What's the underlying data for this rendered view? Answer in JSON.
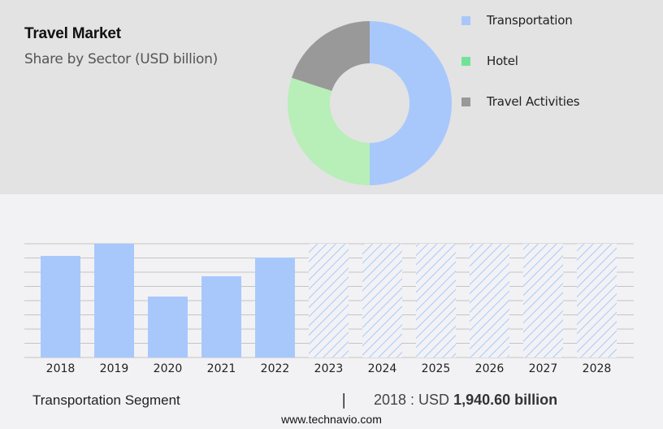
{
  "header": {
    "title": "Travel Market",
    "subtitle": "Share by Sector (USD billion)"
  },
  "legend": [
    {
      "label": "Transportation",
      "color": "#a8c8fc"
    },
    {
      "label": "Hotel",
      "color": "#72e396"
    },
    {
      "label": "Travel Activities",
      "color": "#999999"
    }
  ],
  "footer": {
    "segment": "Transportation Segment",
    "separator": "|",
    "year_prefix": "2018 : USD",
    "value": "1,940.60 billion",
    "site": "www.technavio.com"
  },
  "chart_data": [
    {
      "type": "pie",
      "title": "Travel Market",
      "subtitle": "Share by Sector (USD billion)",
      "donut": true,
      "categories": [
        "Transportation",
        "Hotel",
        "Travel Activities"
      ],
      "values": [
        50,
        30,
        20
      ],
      "colors": [
        "#a8c8fc",
        "#b8eeb8",
        "#999999"
      ],
      "legend_position": "right"
    },
    {
      "type": "bar",
      "title": "Transportation Segment",
      "categories": [
        "2018",
        "2019",
        "2020",
        "2021",
        "2022",
        "2023",
        "2024",
        "2025",
        "2026",
        "2027",
        "2028"
      ],
      "values": [
        1940.6,
        2173,
        1164,
        1552,
        1910,
        null,
        null,
        null,
        null,
        null,
        null
      ],
      "forecast": [
        false,
        false,
        false,
        false,
        false,
        true,
        true,
        true,
        true,
        true,
        true
      ],
      "xlabel": "",
      "ylabel": "",
      "grid": true,
      "annotation": "2018 : USD 1,940.60 billion",
      "bar_color": "#a8c8fc"
    }
  ]
}
